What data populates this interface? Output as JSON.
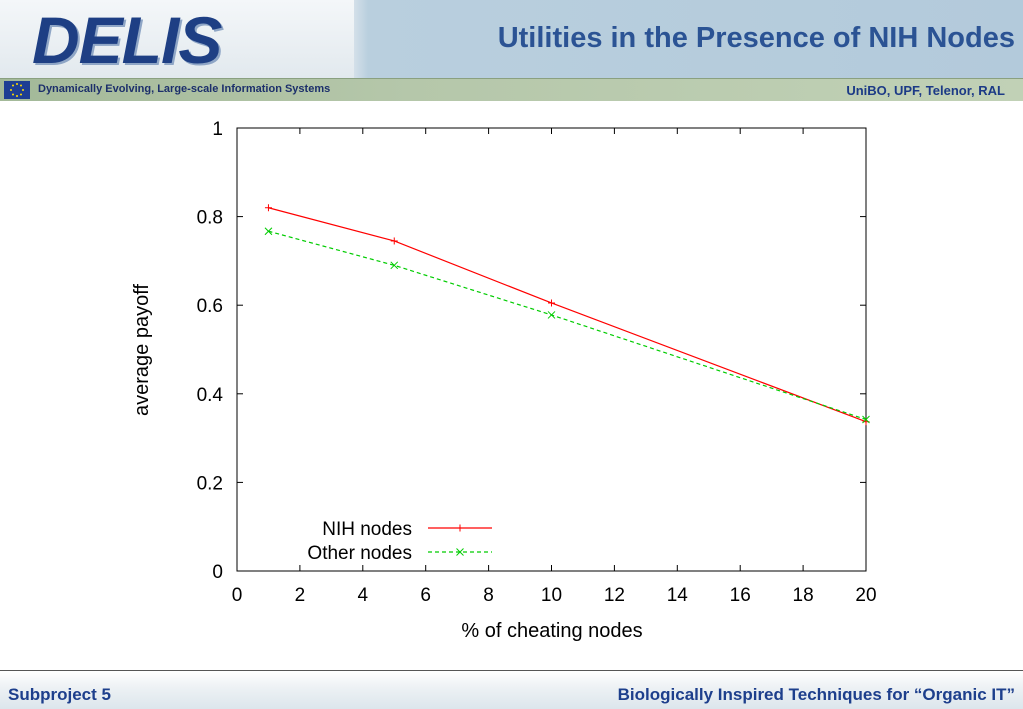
{
  "header": {
    "logo_text": "DELIS",
    "title": "Utilities in the Presence of NIH Nodes",
    "subtitle": "Dynamically Evolving, Large-scale Information Systems",
    "partners": "UniBO, UPF, Telenor, RAL"
  },
  "footer": {
    "left": "Subproject 5",
    "right": "Biologically Inspired Techniques for “Organic IT”"
  },
  "colors": {
    "title": "#2b5394",
    "nih_series": "#ff0000",
    "other_series": "#00cc00"
  },
  "chart_data": {
    "type": "line",
    "title": "",
    "xlabel": "% of cheating nodes",
    "ylabel": "average payoff",
    "xlim": [
      0,
      20
    ],
    "ylim": [
      0,
      1
    ],
    "x_ticks": [
      "0",
      "2",
      "4",
      "6",
      "8",
      "10",
      "12",
      "14",
      "16",
      "18",
      "20"
    ],
    "y_ticks": [
      "0",
      "0.2",
      "0.4",
      "0.6",
      "0.8",
      "1"
    ],
    "grid": false,
    "legend_position": "bottom-left",
    "series": [
      {
        "name": "NIH nodes",
        "style": "solid",
        "marker": "+",
        "x": [
          1,
          5,
          10,
          20
        ],
        "y": [
          0.82,
          0.745,
          0.605,
          0.337
        ]
      },
      {
        "name": "Other nodes",
        "style": "dashed",
        "marker": "x",
        "x": [
          1,
          5,
          10,
          20
        ],
        "y": [
          0.767,
          0.69,
          0.578,
          0.342
        ]
      }
    ]
  }
}
